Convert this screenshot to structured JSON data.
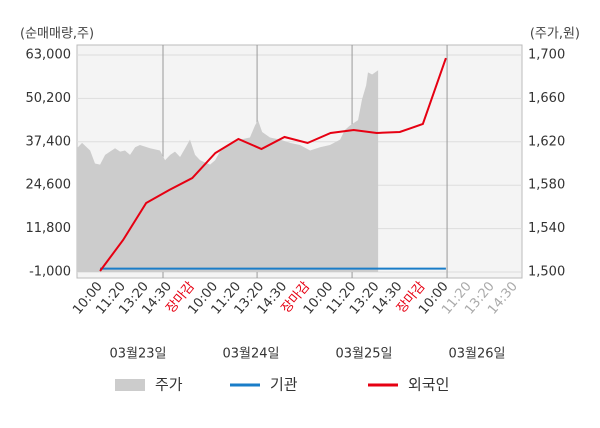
{
  "chart_data": {
    "type": "combo",
    "y_label": "(순매매량,주)",
    "y2_label": "(주가,원)",
    "xlim": [
      -1.0,
      18.3
    ],
    "categories": [
      "10:00",
      "11:20",
      "13:20",
      "14:30",
      "장마감",
      "10:00",
      "11:20",
      "13:20",
      "14:30",
      "장마감",
      "10:00",
      "11:20",
      "13:20",
      "14:30",
      "장마감",
      "10:00",
      "11:20",
      "13:20",
      "14:30"
    ],
    "tick_colors": [
      "#333",
      "#333",
      "#333",
      "#333",
      "#e60012",
      "#333",
      "#333",
      "#333",
      "#333",
      "#e60012",
      "#333",
      "#333",
      "#333",
      "#333",
      "#e60012",
      "#333",
      "#aaa",
      "#aaa",
      "#aaa"
    ],
    "xgrid": [
      2.73,
      6.81,
      10.93,
      15.05
    ],
    "day_labels": [
      "03월23일",
      "03월24일",
      "03월25일",
      "03월26일"
    ],
    "ylim": [
      -1000,
      63000
    ],
    "yticks": [
      {
        "value": -1000,
        "label": "-1,000"
      },
      {
        "value": 11800,
        "label": "11,800"
      },
      {
        "value": 24600,
        "label": "24,600"
      },
      {
        "value": 37400,
        "label": "37,400"
      },
      {
        "value": 50200,
        "label": "50,200"
      },
      {
        "value": 63000,
        "label": "63,000"
      }
    ],
    "y2lim": [
      1500,
      1700
    ],
    "y2ticks": [
      {
        "value": 1500,
        "label": "1,500"
      },
      {
        "value": 1540,
        "label": "1,540"
      },
      {
        "value": 1580,
        "label": "1,580"
      },
      {
        "value": 1620,
        "label": "1,620"
      },
      {
        "value": 1660,
        "label": "1,660"
      },
      {
        "value": 1700,
        "label": "1,700"
      }
    ],
    "series": [
      {
        "name": "주가",
        "type": "area",
        "axis": "y2",
        "color": "#cccccc",
        "x": [
          -1.0,
          -0.78,
          -0.43,
          -0.22,
          0,
          0.22,
          0.43,
          0.65,
          0.87,
          1.08,
          1.3,
          1.52,
          1.73,
          2.17,
          2.6,
          2.82,
          3.04,
          3.25,
          3.47,
          3.69,
          3.9,
          4.12,
          4.34,
          4.77,
          4.99,
          5.2,
          5.64,
          6.07,
          6.5,
          6.72,
          6.85,
          7.03,
          7.37,
          7.81,
          8.24,
          8.67,
          9.11,
          9.54,
          9.97,
          10.41,
          10.62,
          10.84,
          11.19,
          11.36,
          11.54,
          11.62,
          11.8,
          12.06
        ],
        "values": [
          1614,
          1619,
          1612,
          1600,
          1599,
          1608,
          1611,
          1614,
          1611,
          1612,
          1608,
          1615,
          1617,
          1614,
          1612,
          1603,
          1608,
          1611,
          1606,
          1614,
          1622,
          1608,
          1603,
          1599,
          1603,
          1611,
          1617,
          1622,
          1624,
          1635,
          1640,
          1629,
          1624,
          1622,
          1619,
          1617,
          1612,
          1615,
          1617,
          1622,
          1631,
          1635,
          1640,
          1659,
          1672,
          1684,
          1682,
          1686
        ]
      },
      {
        "name": "기관",
        "type": "line",
        "color": "#1a7dc8",
        "x": [
          0,
          1,
          2,
          3,
          4,
          5,
          6,
          7,
          8,
          9,
          10,
          11,
          12,
          13,
          14,
          15
        ],
        "values": [
          0,
          0,
          0,
          0,
          0,
          0,
          0,
          0,
          0,
          0,
          0,
          0,
          0,
          0,
          0,
          0
        ]
      },
      {
        "name": "외국인",
        "type": "line",
        "color": "#e60012",
        "x": [
          0,
          1,
          2,
          3,
          4,
          5,
          6,
          7,
          8,
          9,
          10,
          11,
          12,
          13,
          14,
          15
        ],
        "values": [
          -700,
          8440,
          19350,
          23180,
          26720,
          34100,
          38230,
          35280,
          38820,
          37050,
          40000,
          40880,
          40000,
          40290,
          42650,
          62100
        ]
      }
    ]
  }
}
